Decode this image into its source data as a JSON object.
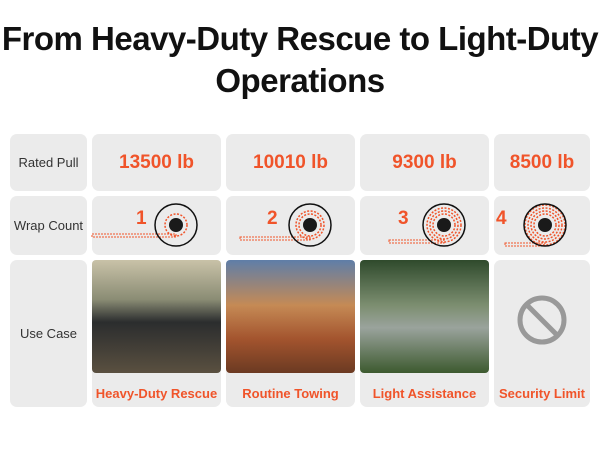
{
  "title": "From Heavy-Duty Rescue to Light-Duty Operations",
  "row_labels": [
    "Rated Pull",
    "Wrap Count",
    "Use Case"
  ],
  "columns": [
    {
      "pull": "13500 lb",
      "wrap": "1",
      "use": "Heavy-Duty Rescue"
    },
    {
      "pull": "10010 lb",
      "wrap": "2",
      "use": "Routine Towing"
    },
    {
      "pull": "9300 lb",
      "wrap": "3",
      "use": "Light Assistance"
    },
    {
      "pull": "8500 lb",
      "wrap": "4",
      "use": "Security Limit"
    }
  ],
  "colors": {
    "accent": "#f0542a",
    "cell": "#ebebeb"
  }
}
